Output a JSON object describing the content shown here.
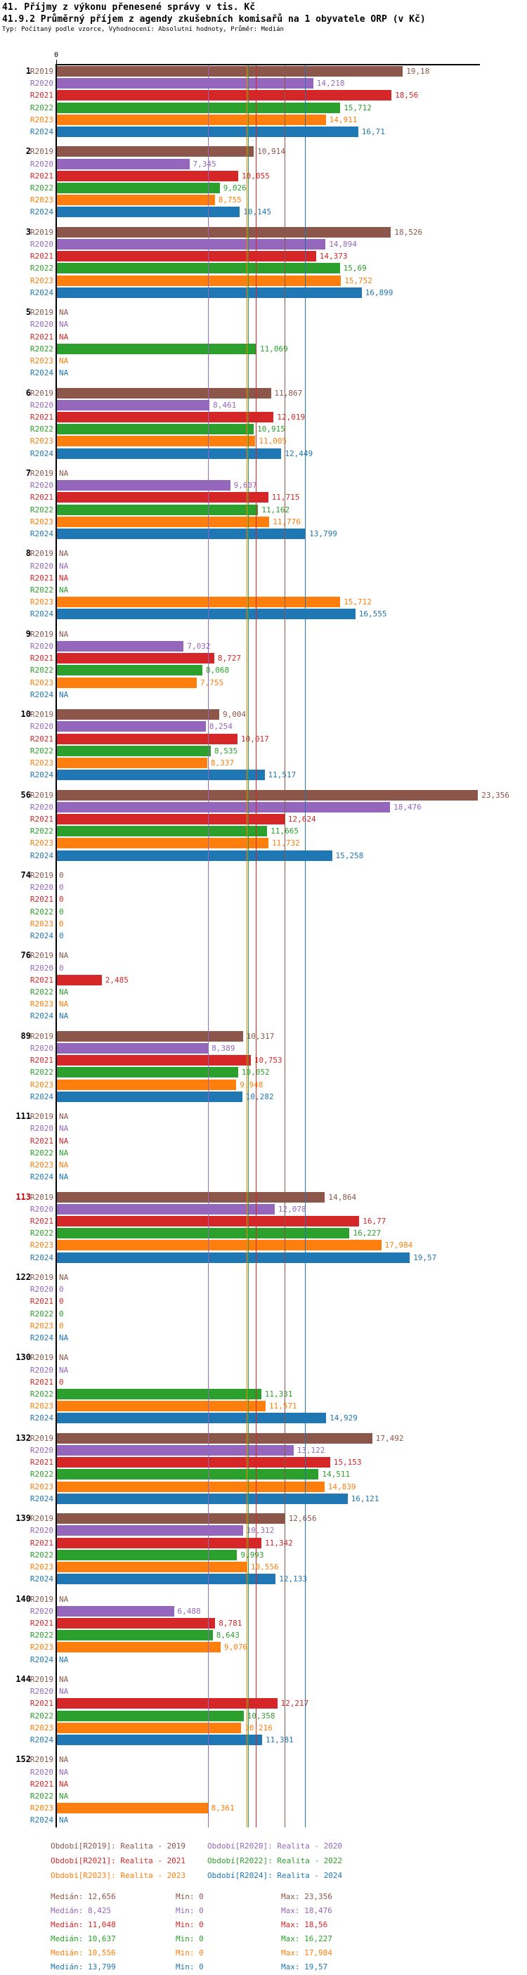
{
  "header": {
    "title_line1": "41. Příjmy z výkonu přenesené správy v tis. Kč",
    "title_line2": "41.9.2 Průměrný příjem z agendy zkušebních komisařů na 1 obyvatele ORP (v Kč)",
    "subtitle": "Typ: Počítaný podle vzorce, Vyhodnocení: Absolutní hodnoty, Průměr: Medián"
  },
  "chart_data": {
    "type": "bar",
    "orientation": "horizontal-grouped",
    "value_axis": {
      "min": 0,
      "tick_labels": [
        "0"
      ],
      "grid": "median-lines-only"
    },
    "na_text": "NA",
    "highlighted_group_ids": [
      "113"
    ],
    "highlight_color": "#cc0000",
    "series": [
      {
        "key": "R2019",
        "name": "Realita - 2019",
        "color": "#8c564b",
        "median": 12.656,
        "legend_label": "Období[R2019]: Realita - 2019",
        "median_label": "Medián: 12,656",
        "min_label": "Min: 0",
        "max_label": "Max: 23,356"
      },
      {
        "key": "R2020",
        "name": "Realita - 2020",
        "color": "#9467bd",
        "median": 8.425,
        "legend_label": "Období[R2020]: Realita - 2020",
        "median_label": "Medián: 8,425",
        "min_label": "Min: 0",
        "max_label": "Max: 18,476"
      },
      {
        "key": "R2021",
        "name": "Realita - 2021",
        "color": "#d62728",
        "median": 11.048,
        "legend_label": "Období[R2021]: Realita - 2021",
        "median_label": "Medián: 11,048",
        "min_label": "Min: 0",
        "max_label": "Max: 18,56"
      },
      {
        "key": "R2022",
        "name": "Realita - 2022",
        "color": "#2ca02c",
        "median": 10.637,
        "legend_label": "Období[R2022]: Realita - 2022",
        "median_label": "Medián: 10,637",
        "min_label": "Min: 0",
        "max_label": "Max: 16,227"
      },
      {
        "key": "R2023",
        "name": "Realita - 2023",
        "color": "#ff7f0e",
        "median": 10.556,
        "legend_label": "Období[R2023]: Realita - 2023",
        "median_label": "Medián: 10,556",
        "min_label": "Min: 0",
        "max_label": "Max: 17,984"
      },
      {
        "key": "R2024",
        "name": "Realita - 2024",
        "color": "#1f77b4",
        "median": 13.799,
        "legend_label": "Období[R2024]: Realita - 2024",
        "median_label": "Medián: 13,799",
        "min_label": "Min: 0",
        "max_label": "Max: 19,57"
      }
    ],
    "groups": [
      {
        "id": "1",
        "values": [
          "19,18",
          "14,218",
          "18,56",
          "15,712",
          "14,911",
          "16,71"
        ]
      },
      {
        "id": "2",
        "values": [
          "10,914",
          "7,345",
          "10,055",
          "9,026",
          "8,755",
          "10,145"
        ]
      },
      {
        "id": "3",
        "values": [
          "18,526",
          "14,894",
          "14,373",
          "15,69",
          "15,752",
          "16,899"
        ]
      },
      {
        "id": "5",
        "values": [
          "NA",
          "NA",
          "NA",
          "11,069",
          "NA",
          "NA"
        ]
      },
      {
        "id": "6",
        "values": [
          "11,867",
          "8,461",
          "12,019",
          "10,915",
          "11,005",
          "12,449"
        ]
      },
      {
        "id": "7",
        "values": [
          "NA",
          "9,607",
          "11,715",
          "11,162",
          "11,776",
          "13,799"
        ]
      },
      {
        "id": "8",
        "values": [
          "NA",
          "NA",
          "NA",
          "NA",
          "15,712",
          "16,555"
        ]
      },
      {
        "id": "9",
        "values": [
          "NA",
          "7,032",
          "8,727",
          "8,068",
          "7,755",
          "NA"
        ]
      },
      {
        "id": "10",
        "values": [
          "9,004",
          "8,254",
          "10,017",
          "8,535",
          "8,337",
          "11,517"
        ]
      },
      {
        "id": "56",
        "values": [
          "23,356",
          "18,476",
          "12,624",
          "11,665",
          "11,732",
          "15,258"
        ]
      },
      {
        "id": "74",
        "values": [
          "0",
          "0",
          "0",
          "0",
          "0",
          "0"
        ]
      },
      {
        "id": "76",
        "values": [
          "NA",
          "0",
          "2,485",
          "NA",
          "NA",
          "NA"
        ]
      },
      {
        "id": "89",
        "values": [
          "10,317",
          "8,389",
          "10,753",
          "10,052",
          "9,948",
          "10,282"
        ]
      },
      {
        "id": "111",
        "values": [
          "NA",
          "NA",
          "NA",
          "NA",
          "NA",
          "NA"
        ]
      },
      {
        "id": "113",
        "values": [
          "14,864",
          "12,078",
          "16,77",
          "16,227",
          "17,984",
          "19,57"
        ]
      },
      {
        "id": "122",
        "values": [
          "NA",
          "0",
          "0",
          "0",
          "0",
          "NA"
        ]
      },
      {
        "id": "130",
        "values": [
          "NA",
          "NA",
          "0",
          "11,331",
          "11,571",
          "14,929"
        ]
      },
      {
        "id": "132",
        "values": [
          "17,492",
          "13,122",
          "15,153",
          "14,511",
          "14,839",
          "16,121"
        ]
      },
      {
        "id": "139",
        "values": [
          "12,656",
          "10,312",
          "11,342",
          "9,993",
          "10,556",
          "12,133"
        ]
      },
      {
        "id": "140",
        "values": [
          "NA",
          "6,488",
          "8,781",
          "8,643",
          "9,076",
          "NA"
        ]
      },
      {
        "id": "144",
        "values": [
          "NA",
          "NA",
          "12,217",
          "10,358",
          "10,216",
          "11,381"
        ]
      },
      {
        "id": "152",
        "values": [
          "NA",
          "NA",
          "NA",
          "NA",
          "8,361",
          "NA"
        ]
      }
    ]
  }
}
